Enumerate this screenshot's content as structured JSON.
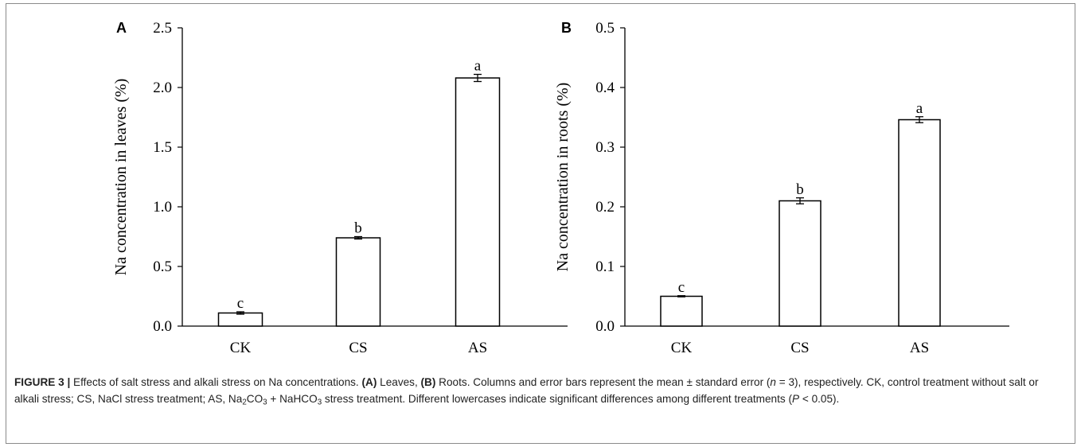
{
  "chart_data": [
    {
      "type": "bar",
      "panel_label": "A",
      "categories": [
        "CK",
        "CS",
        "AS"
      ],
      "values": [
        0.11,
        0.74,
        2.08
      ],
      "errors": [
        0.01,
        0.01,
        0.03
      ],
      "letters": [
        "c",
        "b",
        "a"
      ],
      "ylabel": "Na concentration in leaves (%)",
      "ylim": [
        0,
        2.5
      ],
      "yticks": [
        0,
        0.5,
        1.0,
        1.5,
        2.0,
        2.5
      ],
      "ytick_labels": [
        "0.0",
        "0.5",
        "1.0",
        "1.5",
        "2.0",
        "2.5"
      ],
      "grid": false
    },
    {
      "type": "bar",
      "panel_label": "B",
      "categories": [
        "CK",
        "CS",
        "AS"
      ],
      "values": [
        0.05,
        0.21,
        0.346
      ],
      "errors": [
        0.001,
        0.005,
        0.005
      ],
      "letters": [
        "c",
        "b",
        "a"
      ],
      "ylabel": "Na concentration in roots (%)",
      "ylim": [
        0,
        0.5
      ],
      "yticks": [
        0,
        0.1,
        0.2,
        0.3,
        0.4,
        0.5
      ],
      "ytick_labels": [
        "0.0",
        "0.1",
        "0.2",
        "0.3",
        "0.4",
        "0.5"
      ],
      "grid": false
    }
  ],
  "caption": {
    "figure_label": "FIGURE 3 |",
    "t1": " Effects of salt stress and alkali stress on Na concentrations. ",
    "a_label": "(A)",
    "t2": " Leaves, ",
    "b_label": "(B)",
    "t3": " Roots. Columns and error bars represent the mean ± standard error (",
    "n_var": "n",
    "t4": " = 3), respectively. CK, control treatment without salt or alkali stress; CS, NaCl stress treatment; AS, Na",
    "sub1": "2",
    "t5": "CO",
    "sub2": "3",
    "t6": " + NaHCO",
    "sub3": "3",
    "t7": " stress treatment. Different lowercases indicate significant differences among different treatments (",
    "p_var": "P",
    "t8": " < 0.05)."
  }
}
